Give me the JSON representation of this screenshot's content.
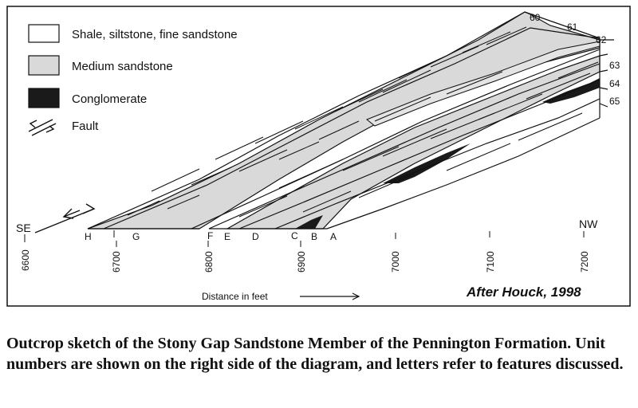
{
  "legend": {
    "items": [
      {
        "label": "Shale, siltstone, fine sandstone",
        "fill": "#ffffff"
      },
      {
        "label": "Medium sandstone",
        "fill": "#d9d9d9"
      },
      {
        "label": "Conglomerate",
        "fill": "#1a1a1a"
      },
      {
        "label": "Fault"
      }
    ]
  },
  "units": [
    "60",
    "61",
    "62",
    "63",
    "64",
    "65"
  ],
  "features": [
    "H",
    "G",
    "F",
    "E",
    "D",
    "C",
    "B",
    "A"
  ],
  "directions": {
    "left": "SE",
    "right": "NW"
  },
  "axis": {
    "ticks": [
      "6600",
      "6700",
      "6800",
      "6900",
      "7000",
      "7100",
      "7200"
    ],
    "title": "Distance in feet"
  },
  "credit": "After Houck, 1998",
  "caption": "Outcrop sketch of the Stony Gap Sandstone Member of the Pennington Formation.  Unit numbers are shown on the right side of the diagram, and letters refer to features discussed."
}
